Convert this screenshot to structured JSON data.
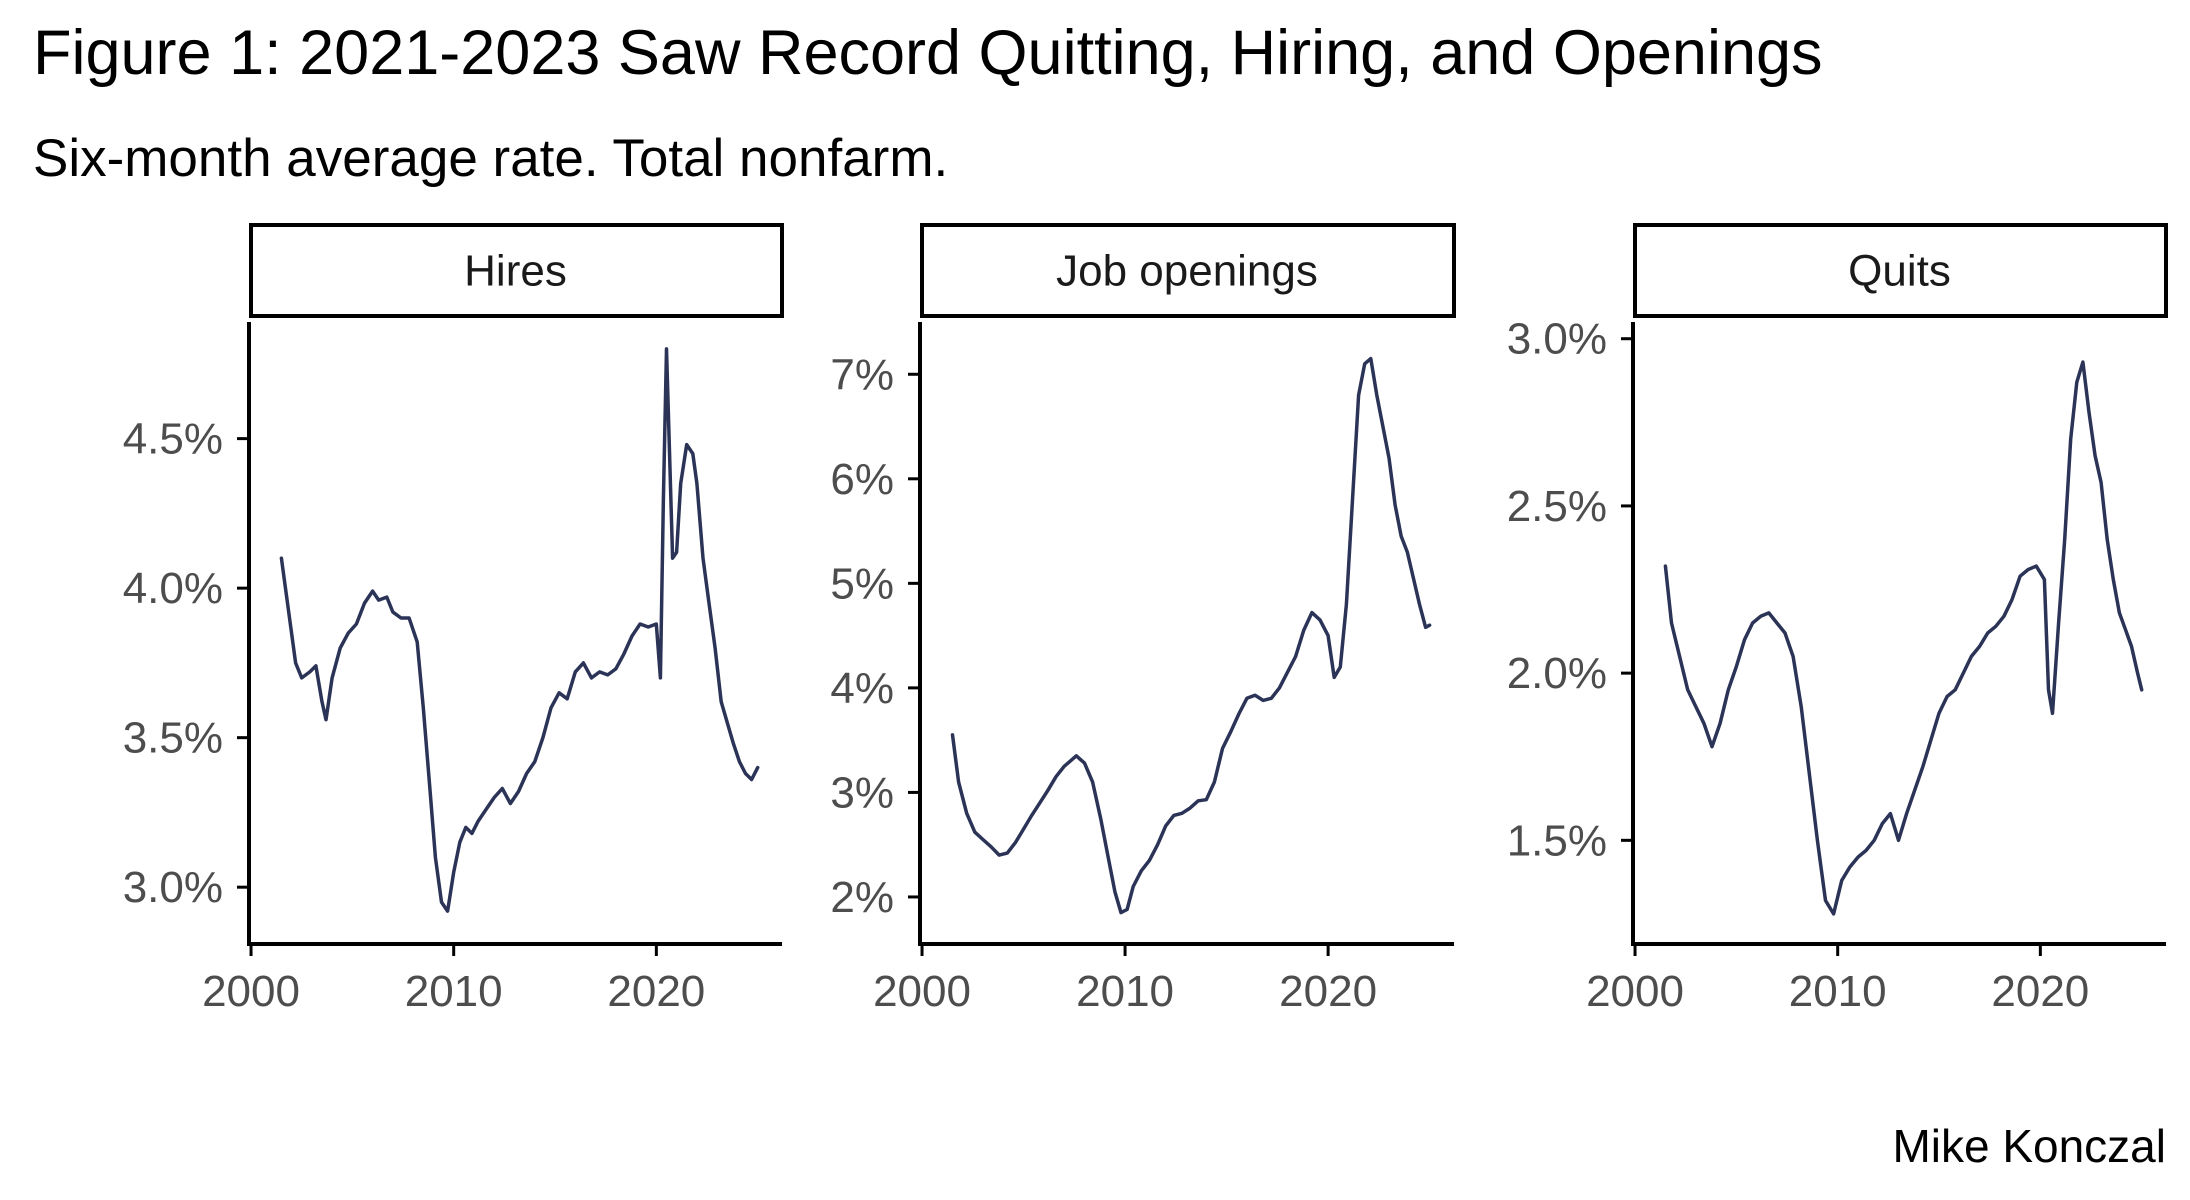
{
  "header": {
    "title": "Figure 1: 2021-2023 Saw Record Quitting, Hiring, and Openings",
    "subtitle": "Six-month average rate. Total nonfarm."
  },
  "caption": "Mike Konczal",
  "colors": {
    "line": "#2b3357",
    "axis": "#000000",
    "tick_text": "#4d4d4d",
    "background": "#ffffff"
  },
  "chart_data": [
    {
      "type": "line",
      "facet": "Hires",
      "x_ticks": [
        2000,
        2010,
        2020
      ],
      "x_tick_labels": [
        "2000",
        "2010",
        "2020"
      ],
      "xlim": [
        1999.9,
        2026.2
      ],
      "y_ticks": [
        3.0,
        3.5,
        4.0,
        4.5
      ],
      "y_tick_labels": [
        "3.0%",
        "3.5%",
        "4.0%",
        "4.5%"
      ],
      "ylim": [
        2.81,
        4.89
      ],
      "grid": false,
      "series": [
        {
          "x": [
            2001.5,
            2001.8,
            2002.2,
            2002.5,
            2002.9,
            2003.2,
            2003.5,
            2003.7,
            2004.0,
            2004.4,
            2004.8,
            2005.2,
            2005.6,
            2006.0,
            2006.3,
            2006.7,
            2007.0,
            2007.4,
            2007.8,
            2008.2,
            2008.5,
            2008.8,
            2009.1,
            2009.4,
            2009.7,
            2010.0,
            2010.3,
            2010.6,
            2010.9,
            2011.2,
            2011.6,
            2012.0,
            2012.4,
            2012.8,
            2013.2,
            2013.6,
            2014.0,
            2014.4,
            2014.8,
            2015.2,
            2015.6,
            2016.0,
            2016.4,
            2016.8,
            2017.2,
            2017.6,
            2018.0,
            2018.4,
            2018.8,
            2019.2,
            2019.6,
            2020.0,
            2020.2,
            2020.35,
            2020.5,
            2020.8,
            2021.0,
            2021.2,
            2021.5,
            2021.8,
            2022.0,
            2022.3,
            2022.6,
            2022.9,
            2023.2,
            2023.5,
            2023.8,
            2024.1,
            2024.4,
            2024.7,
            2025.0
          ],
          "y": [
            4.1,
            3.95,
            3.75,
            3.7,
            3.72,
            3.74,
            3.62,
            3.56,
            3.7,
            3.8,
            3.85,
            3.88,
            3.95,
            3.99,
            3.96,
            3.97,
            3.92,
            3.9,
            3.9,
            3.82,
            3.6,
            3.35,
            3.1,
            2.95,
            2.92,
            3.05,
            3.15,
            3.2,
            3.18,
            3.22,
            3.26,
            3.3,
            3.33,
            3.28,
            3.32,
            3.38,
            3.42,
            3.5,
            3.6,
            3.65,
            3.63,
            3.72,
            3.75,
            3.7,
            3.72,
            3.71,
            3.73,
            3.78,
            3.84,
            3.88,
            3.87,
            3.88,
            3.7,
            4.3,
            4.8,
            4.1,
            4.12,
            4.35,
            4.48,
            4.45,
            4.35,
            4.1,
            3.95,
            3.8,
            3.62,
            3.55,
            3.48,
            3.42,
            3.38,
            3.36,
            3.4
          ]
        }
      ]
    },
    {
      "type": "line",
      "facet": "Job openings",
      "x_ticks": [
        2000,
        2010,
        2020
      ],
      "x_tick_labels": [
        "2000",
        "2010",
        "2020"
      ],
      "xlim": [
        1999.9,
        2026.2
      ],
      "y_ticks": [
        2,
        3,
        4,
        5,
        6,
        7
      ],
      "y_tick_labels": [
        "2%",
        "3%",
        "4%",
        "5%",
        "6%",
        "7%"
      ],
      "ylim": [
        1.55,
        7.5
      ],
      "grid": false,
      "series": [
        {
          "x": [
            2001.5,
            2001.8,
            2002.2,
            2002.6,
            2003.0,
            2003.4,
            2003.8,
            2004.2,
            2004.6,
            2005.0,
            2005.4,
            2005.8,
            2006.2,
            2006.6,
            2007.0,
            2007.3,
            2007.6,
            2008.0,
            2008.4,
            2008.8,
            2009.2,
            2009.5,
            2009.8,
            2010.1,
            2010.4,
            2010.8,
            2011.2,
            2011.6,
            2012.0,
            2012.4,
            2012.8,
            2013.2,
            2013.6,
            2014.0,
            2014.4,
            2014.8,
            2015.2,
            2015.6,
            2016.0,
            2016.4,
            2016.8,
            2017.2,
            2017.6,
            2018.0,
            2018.4,
            2018.8,
            2019.2,
            2019.6,
            2020.0,
            2020.3,
            2020.6,
            2020.9,
            2021.2,
            2021.5,
            2021.8,
            2022.1,
            2022.4,
            2022.7,
            2023.0,
            2023.3,
            2023.6,
            2023.9,
            2024.2,
            2024.5,
            2024.8,
            2025.0
          ],
          "y": [
            3.55,
            3.1,
            2.8,
            2.62,
            2.55,
            2.48,
            2.4,
            2.42,
            2.52,
            2.65,
            2.78,
            2.9,
            3.02,
            3.15,
            3.25,
            3.3,
            3.35,
            3.28,
            3.1,
            2.75,
            2.35,
            2.05,
            1.85,
            1.88,
            2.1,
            2.25,
            2.35,
            2.5,
            2.68,
            2.78,
            2.8,
            2.85,
            2.92,
            2.93,
            3.1,
            3.42,
            3.58,
            3.75,
            3.9,
            3.93,
            3.88,
            3.9,
            4.0,
            4.15,
            4.3,
            4.55,
            4.72,
            4.65,
            4.5,
            4.1,
            4.2,
            4.8,
            5.8,
            6.8,
            7.1,
            7.15,
            6.8,
            6.5,
            6.2,
            5.75,
            5.45,
            5.3,
            5.05,
            4.8,
            4.58,
            4.6
          ]
        }
      ]
    },
    {
      "type": "line",
      "facet": "Quits",
      "x_ticks": [
        2000,
        2010,
        2020
      ],
      "x_tick_labels": [
        "2000",
        "2010",
        "2020"
      ],
      "xlim": [
        1999.9,
        2026.2
      ],
      "y_ticks": [
        1.5,
        2.0,
        2.5,
        3.0
      ],
      "y_tick_labels": [
        "1.5%",
        "2.0%",
        "2.5%",
        "3.0%"
      ],
      "ylim": [
        1.19,
        3.05
      ],
      "grid": false,
      "series": [
        {
          "x": [
            2001.5,
            2001.8,
            2002.2,
            2002.6,
            2003.0,
            2003.4,
            2003.8,
            2004.2,
            2004.6,
            2005.0,
            2005.4,
            2005.8,
            2006.2,
            2006.6,
            2007.0,
            2007.4,
            2007.8,
            2008.2,
            2008.6,
            2009.0,
            2009.4,
            2009.8,
            2010.2,
            2010.6,
            2011.0,
            2011.4,
            2011.8,
            2012.2,
            2012.6,
            2013.0,
            2013.4,
            2013.8,
            2014.2,
            2014.6,
            2015.0,
            2015.4,
            2015.8,
            2016.2,
            2016.6,
            2017.0,
            2017.4,
            2017.8,
            2018.2,
            2018.6,
            2019.0,
            2019.4,
            2019.8,
            2020.2,
            2020.4,
            2020.6,
            2020.9,
            2021.2,
            2021.5,
            2021.8,
            2022.1,
            2022.4,
            2022.7,
            2023.0,
            2023.3,
            2023.6,
            2023.9,
            2024.2,
            2024.5,
            2024.8,
            2025.0
          ],
          "y": [
            2.32,
            2.15,
            2.05,
            1.95,
            1.9,
            1.85,
            1.78,
            1.85,
            1.95,
            2.02,
            2.1,
            2.15,
            2.17,
            2.18,
            2.15,
            2.12,
            2.05,
            1.9,
            1.7,
            1.5,
            1.32,
            1.28,
            1.38,
            1.42,
            1.45,
            1.47,
            1.5,
            1.55,
            1.58,
            1.5,
            1.58,
            1.65,
            1.72,
            1.8,
            1.88,
            1.93,
            1.95,
            2.0,
            2.05,
            2.08,
            2.12,
            2.14,
            2.17,
            2.22,
            2.29,
            2.31,
            2.32,
            2.28,
            1.95,
            1.88,
            2.15,
            2.4,
            2.7,
            2.87,
            2.93,
            2.78,
            2.65,
            2.57,
            2.4,
            2.28,
            2.18,
            2.13,
            2.08,
            2.0,
            1.95
          ]
        }
      ]
    }
  ]
}
